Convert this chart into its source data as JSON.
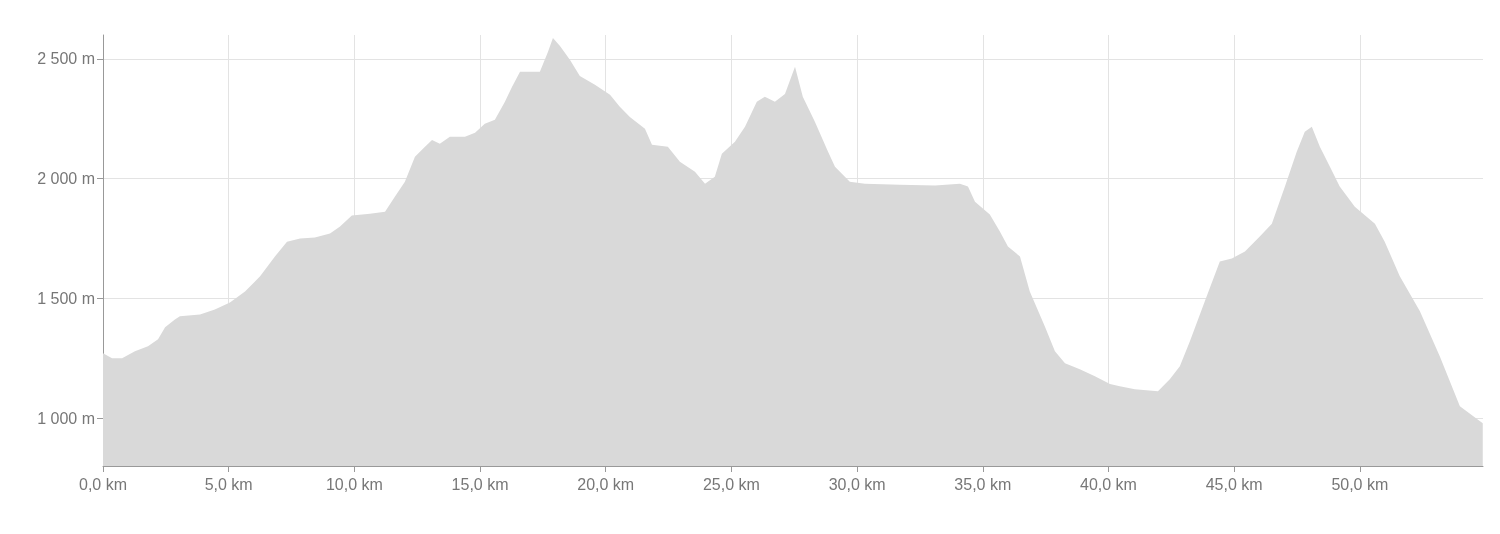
{
  "chart_data": {
    "type": "area",
    "grid": true,
    "marker": "none",
    "xlim": [
      0,
      54.9
    ],
    "ylim": [
      800,
      2600
    ],
    "xticks": [
      {
        "value": 0,
        "label": "0,0 km"
      },
      {
        "value": 5,
        "label": "5,0 km"
      },
      {
        "value": 10,
        "label": "10,0 km"
      },
      {
        "value": 15,
        "label": "15,0 km"
      },
      {
        "value": 20,
        "label": "20,0 km"
      },
      {
        "value": 25,
        "label": "25,0 km"
      },
      {
        "value": 30,
        "label": "30,0 km"
      },
      {
        "value": 35,
        "label": "35,0 km"
      },
      {
        "value": 40,
        "label": "40,0 km"
      },
      {
        "value": 45,
        "label": "45,0 km"
      },
      {
        "value": 50,
        "label": "50,0 km"
      }
    ],
    "yticks": [
      {
        "value": 1000,
        "label": "1 000 m"
      },
      {
        "value": 1500,
        "label": "1 500 m"
      },
      {
        "value": 2000,
        "label": "2 000 m"
      },
      {
        "value": 2500,
        "label": "2 500 m"
      }
    ],
    "series": [
      {
        "color": "#d9d9d9",
        "x": [
          0,
          0.36,
          0.76,
          1.27,
          1.79,
          2.19,
          2.47,
          2.86,
          3.06,
          3.86,
          4.45,
          5.05,
          5.65,
          6.25,
          6.84,
          7.32,
          7.84,
          8.43,
          9.03,
          9.43,
          9.9,
          10.62,
          11.22,
          11.61,
          12.01,
          12.41,
          12.81,
          13.09,
          13.4,
          13.8,
          14.4,
          14.8,
          15.19,
          15.59,
          15.99,
          16.27,
          16.59,
          16.98,
          17.38,
          17.7,
          17.9,
          18.18,
          18.58,
          18.97,
          19.57,
          20.17,
          20.56,
          20.96,
          21.56,
          21.84,
          22.47,
          22.95,
          23.55,
          23.95,
          24.34,
          24.62,
          25.14,
          25.54,
          26.01,
          26.33,
          26.73,
          27.13,
          27.53,
          27.84,
          28.32,
          28.84,
          29.12,
          29.71,
          30.31,
          31.7,
          33.1,
          34.09,
          34.41,
          34.69,
          35.28,
          35.68,
          36.0,
          36.48,
          36.87,
          37.47,
          37.87,
          38.27,
          38.86,
          39.46,
          40.06,
          40.45,
          41.05,
          41.97,
          42.44,
          42.84,
          43.24,
          43.83,
          44.43,
          44.91,
          45.43,
          46.02,
          46.5,
          47.02,
          47.49,
          47.81,
          48.09,
          48.41,
          48.81,
          49.2,
          49.8,
          50.6,
          50.99,
          51.59,
          52.39,
          53.18,
          53.98,
          54.89
        ],
        "values": [
          1271,
          1250,
          1250,
          1279,
          1300,
          1329,
          1379,
          1412,
          1425,
          1433,
          1454,
          1483,
          1529,
          1592,
          1675,
          1737,
          1750,
          1754,
          1771,
          1800,
          1846,
          1854,
          1862,
          1925,
          1987,
          2092,
          2133,
          2162,
          2146,
          2175,
          2175,
          2192,
          2229,
          2246,
          2321,
          2383,
          2446,
          2446,
          2446,
          2529,
          2587,
          2554,
          2496,
          2429,
          2392,
          2350,
          2300,
          2258,
          2208,
          2142,
          2133,
          2071,
          2029,
          1979,
          2008,
          2104,
          2154,
          2217,
          2321,
          2342,
          2321,
          2354,
          2467,
          2342,
          2238,
          2113,
          2050,
          1987,
          1979,
          1975,
          1971,
          1979,
          1967,
          1904,
          1850,
          1779,
          1717,
          1675,
          1529,
          1383,
          1279,
          1229,
          1204,
          1175,
          1142,
          1133,
          1121,
          1112,
          1162,
          1217,
          1321,
          1487,
          1654,
          1667,
          1696,
          1758,
          1812,
          1967,
          2112,
          2196,
          2217,
          2133,
          2050,
          1967,
          1883,
          1812,
          1737,
          1592,
          1446,
          1258,
          1050,
          979
        ]
      }
    ]
  }
}
